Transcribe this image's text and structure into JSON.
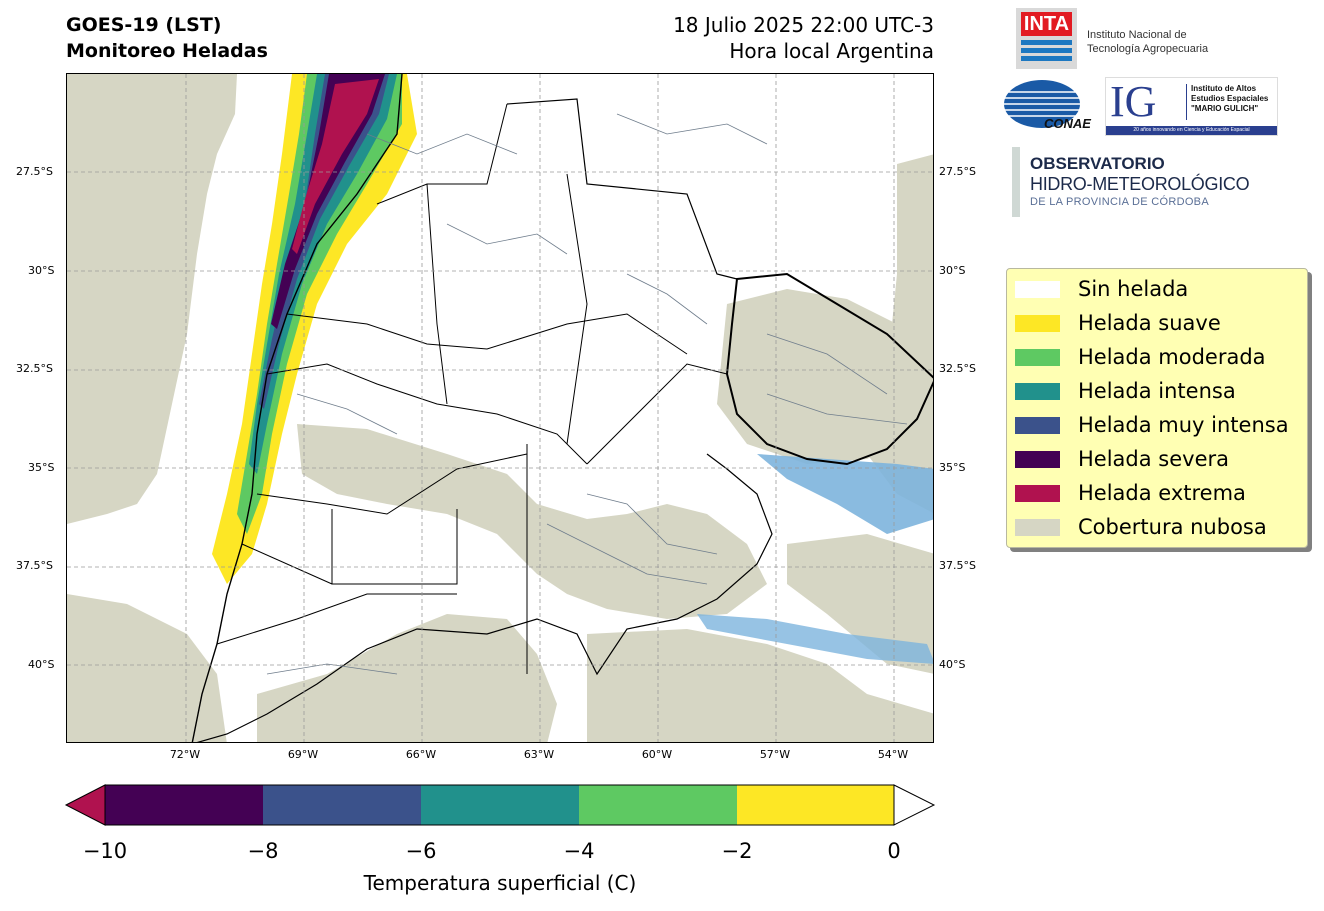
{
  "title": {
    "line1": "GOES-19 (LST)",
    "line2": "Monitoreo Heladas",
    "date": "18 Julio 2025 22:00 UTC-3",
    "tz": "Hora local Argentina"
  },
  "map": {
    "lat_labels": [
      "27.5°S",
      "30°S",
      "32.5°S",
      "35°S",
      "37.5°S",
      "40°S"
    ],
    "lon_labels": [
      "72°W",
      "69°W",
      "66°W",
      "63°W",
      "60°W",
      "57°W",
      "54°W"
    ],
    "colors": {
      "cloud": "#d6d6c4",
      "water": "#7db4dd",
      "boundary": "#6f7d8c",
      "border": "#000000",
      "grid": "#9a9a9a"
    }
  },
  "logos": {
    "inta": "INTA",
    "inta_text1": "Instituto Nacional de",
    "inta_text2": "Tecnología Agropecuaria",
    "conae": "CONAE",
    "ig": "IG",
    "ig_text1": "Instituto de Altos",
    "ig_text2": "Estudios Espaciales",
    "ig_text3": "\"MARIO GULICH\"",
    "ig_text4": "20 años innovando en Ciencia y Educación Espacial",
    "obs1": "OBSERVATORIO",
    "obs2": "HIDRO-METEOROLÓGICO",
    "obs3": "DE LA PROVINCIA DE CÓRDOBA"
  },
  "legend": {
    "items": [
      {
        "label": "Sin helada",
        "color": "#ffffff"
      },
      {
        "label": "Helada suave",
        "color": "#fde725"
      },
      {
        "label": "Helada moderada",
        "color": "#5ec962"
      },
      {
        "label": "Helada intensa",
        "color": "#21918c"
      },
      {
        "label": "Helada muy intensa",
        "color": "#3b528b"
      },
      {
        "label": "Helada severa",
        "color": "#440154"
      },
      {
        "label": "Helada extrema",
        "color": "#b0124f"
      },
      {
        "label": "Cobertura nubosa",
        "color": "#d6d6c4"
      }
    ]
  },
  "colorbar": {
    "ticks": [
      "−10",
      "−8",
      "−6",
      "−4",
      "−2",
      "0"
    ],
    "label": "Temperatura superficial (C)",
    "segments": [
      "#440154",
      "#3b528b",
      "#21918c",
      "#5ec962",
      "#fde725"
    ],
    "under_color": "#b0124f",
    "over_color": "#ffffff"
  }
}
